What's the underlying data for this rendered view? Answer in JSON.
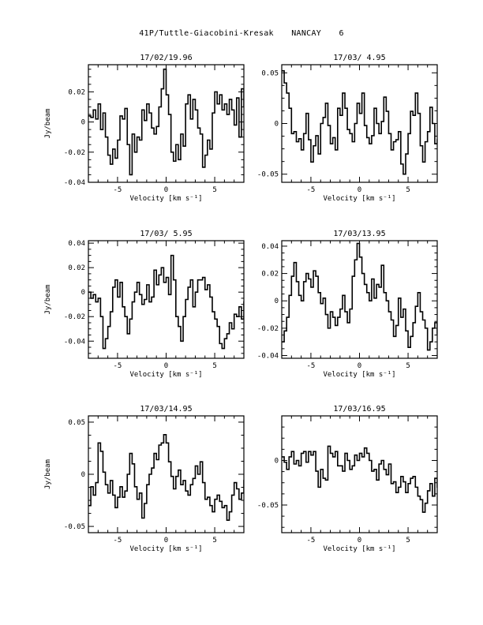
{
  "header": {
    "object": "41P/Tuttle-Giacobini-Kresak",
    "station": "NANCAY",
    "page_number": "6"
  },
  "chart_data": [
    {
      "type": "line",
      "title": "17/02/19.96",
      "xlabel": "Velocity [km s⁻¹]",
      "ylabel": "Jy/beam",
      "xlim": [
        -8,
        8
      ],
      "ylim": [
        -0.04,
        0.038
      ],
      "xticks": [
        -5,
        0,
        5
      ],
      "yticks": [
        -0.04,
        -0.02,
        0,
        0.02
      ],
      "ytick_labels": [
        "-0.04",
        "-0.02",
        "0",
        "0.02"
      ],
      "x_start": -8,
      "x_step": 0.25,
      "values": [
        0.004,
        0.003,
        0.008,
        0.002,
        0.012,
        -0.005,
        0.006,
        -0.01,
        -0.022,
        -0.028,
        -0.018,
        -0.024,
        -0.012,
        0.004,
        0.002,
        0.009,
        -0.015,
        -0.035,
        -0.008,
        -0.02,
        -0.01,
        -0.012,
        0.008,
        0.001,
        0.012,
        0.006,
        -0.004,
        -0.008,
        -0.003,
        0.01,
        0.022,
        0.035,
        0.018,
        0.005,
        -0.02,
        -0.026,
        -0.015,
        -0.025,
        -0.008,
        -0.016,
        0.012,
        0.018,
        0.002,
        0.015,
        0.008,
        -0.004,
        -0.008,
        -0.03,
        -0.022,
        -0.012,
        -0.018,
        0.006,
        0.02,
        0.012,
        0.018,
        0.008,
        0.012,
        0.005,
        0.015,
        0.008,
        -0.002,
        0.016,
        -0.01,
        0.022,
        0.01,
        -0.018,
        -0.012,
        -0.016,
        -0.024,
        -0.006,
        -0.012,
        0.006,
        0.018,
        0.012,
        0.025,
        0.01,
        -0.006,
        -0.01,
        -0.02,
        -0.014,
        -0.012,
        -0.02,
        -0.026,
        -0.012,
        -0.018,
        0.002,
        0.016,
        0.025,
        0.01,
        0.005,
        -0.002,
        -0.01,
        -0.014,
        -0.032,
        -0.038,
        -0.024,
        -0.026,
        -0.018,
        -0.006,
        -0.012,
        -0.02,
        -0.014,
        -0.018,
        -0.012,
        -0.008,
        -0.002,
        0.01,
        0.018,
        0.012,
        0.005,
        -0.006,
        0.002,
        0.012,
        0.02,
        0.008,
        0.003,
        0.012,
        0.006,
        0.01,
        0.016,
        -0.002,
        0.02,
        0.028,
        0.024,
        0.018,
        0.012,
        -0.006,
        -0.014,
        -0.008,
        -0.012,
        -0.018,
        0.006,
        0.002,
        -0.008,
        0.005,
        0.022,
        0.002,
        0.004,
        0.014,
        0.018,
        0.03,
        0.016,
        0.008,
        -0.006,
        -0.012,
        -0.01,
        -0.016,
        -0.004,
        0.016,
        0.006,
        0.01,
        0.002,
        0.008,
        0.014,
        0.012,
        -0.01,
        -0.018,
        -0.012,
        -0.008,
        -0.014
      ]
    },
    {
      "type": "line",
      "title": "17/03/ 4.95",
      "xlabel": "Velocity [km s⁻¹]",
      "ylabel": "",
      "xlim": [
        -8,
        8
      ],
      "ylim": [
        -0.058,
        0.058
      ],
      "xticks": [
        -5,
        0,
        5
      ],
      "yticks": [
        -0.05,
        0,
        0.05
      ],
      "ytick_labels": [
        "-0.05",
        "0",
        "0.05"
      ],
      "x_start": -8,
      "x_step": 0.25,
      "values": [
        0.052,
        0.04,
        0.03,
        0.015,
        -0.01,
        -0.008,
        -0.018,
        -0.015,
        -0.026,
        -0.01,
        0.01,
        -0.016,
        -0.038,
        -0.022,
        -0.012,
        -0.03,
        0.0,
        0.006,
        0.02,
        -0.002,
        -0.02,
        -0.014,
        -0.026,
        0.015,
        0.008,
        0.03,
        0.015,
        -0.006,
        -0.01,
        -0.018,
        0.0,
        0.02,
        0.01,
        0.03,
        -0.002,
        -0.014,
        -0.02,
        -0.012,
        0.015,
        0.0,
        -0.01,
        0.002,
        0.026,
        0.012,
        -0.01,
        -0.026,
        -0.018,
        -0.016,
        -0.008,
        -0.04,
        -0.05,
        -0.03,
        -0.01,
        0.012,
        0.008,
        0.03,
        0.01,
        -0.022,
        -0.038,
        -0.018,
        -0.008,
        0.016,
        0.0,
        -0.02,
        -0.016,
        -0.002,
        0.02,
        0.01,
        0.012,
        0.024,
        0.016,
        0.006,
        -0.01,
        -0.02,
        -0.012,
        -0.002,
        0.012,
        0.03,
        0.015,
        -0.006,
        -0.02,
        -0.014,
        -0.008,
        -0.03,
        -0.012,
        0.005,
        0.02,
        0.02,
        0.01,
        -0.018,
        -0.01,
        0.005,
        0.008,
        -0.008,
        -0.03,
        -0.01,
        -0.004,
        -0.022,
        -0.005,
        0.012,
        0.025,
        -0.01,
        -0.02,
        -0.006,
        0.018,
        0.01,
        -0.015,
        -0.02,
        0.01,
        -0.012,
        -0.005,
        0.02,
        0.015,
        0.012,
        0.0,
        0.016,
        0.005,
        -0.004,
        -0.016,
        -0.024,
        0.0,
        0.024,
        0.01,
        0.005,
        -0.002,
        -0.024,
        0.01,
        0.0,
        -0.01,
        0.012,
        -0.004,
        0.015,
        0.01,
        -0.02,
        0.0,
        0.012,
        0.028,
        0.01,
        0.02,
        0.012,
        -0.01,
        0.0,
        0.018,
        0.012,
        -0.008,
        -0.018,
        -0.01,
        -0.004,
        -0.012,
        -0.02,
        -0.026,
        -0.038,
        -0.01,
        0.028,
        0.06,
        0.025,
        0.03,
        0.008,
        -0.012,
        -0.004
      ]
    },
    {
      "type": "line",
      "title": "17/03/ 5.95",
      "xlabel": "Velocity [km s⁻¹]",
      "ylabel": "Jy/beam",
      "xlim": [
        -8,
        8
      ],
      "ylim": [
        -0.054,
        0.042
      ],
      "xticks": [
        -5,
        0,
        5
      ],
      "yticks": [
        -0.04,
        -0.02,
        0,
        0.02,
        0.04
      ],
      "ytick_labels": [
        "-0.04",
        "-0.02",
        "0",
        "0.02",
        "0.04"
      ],
      "x_start": -8,
      "x_step": 0.25,
      "values": [
        0.0,
        -0.005,
        -0.002,
        -0.008,
        -0.005,
        -0.02,
        -0.046,
        -0.038,
        -0.028,
        -0.016,
        0.004,
        0.01,
        -0.004,
        0.008,
        -0.012,
        -0.02,
        -0.034,
        -0.022,
        -0.008,
        0.0,
        0.008,
        -0.002,
        -0.01,
        -0.006,
        0.006,
        -0.008,
        -0.004,
        0.018,
        0.006,
        0.014,
        0.02,
        0.008,
        0.012,
        -0.002,
        0.03,
        0.01,
        -0.02,
        -0.028,
        -0.04,
        -0.02,
        -0.006,
        0.004,
        0.01,
        -0.012,
        0.0,
        0.01,
        0.01,
        0.012,
        0.002,
        0.006,
        -0.004,
        -0.016,
        -0.022,
        -0.028,
        -0.042,
        -0.046,
        -0.038,
        -0.034,
        -0.025,
        -0.03,
        -0.018,
        -0.02,
        -0.012,
        -0.022,
        -0.008,
        -0.002,
        -0.022,
        -0.018,
        -0.012,
        -0.02,
        -0.014,
        -0.01,
        -0.018,
        -0.006,
        -0.012,
        0.002,
        -0.012,
        -0.008,
        -0.006,
        -0.016,
        -0.02,
        -0.008,
        -0.014,
        -0.018,
        -0.024,
        -0.012,
        -0.008,
        -0.018,
        -0.02,
        -0.026,
        -0.012,
        -0.004,
        0.012,
        0.0,
        -0.006,
        -0.016,
        -0.002,
        0.01,
        0.002,
        -0.004,
        -0.012,
        -0.02,
        -0.014,
        0.006,
        0.02,
        0.034,
        0.034,
        0.022,
        0.008,
        -0.004,
        -0.02,
        -0.034,
        -0.048,
        -0.032,
        -0.01,
        0.004,
        -0.008,
        -0.018,
        -0.01,
        -0.002,
        -0.02,
        -0.008,
        0.006,
        0.02,
        0.002,
        0.01,
        0.008,
        -0.002,
        0.008,
        -0.012,
        -0.004,
        -0.018,
        -0.014,
        -0.004,
        0.016,
        0.01,
        0.006,
        -0.004,
        -0.008,
        -0.014,
        0.002,
        0.012,
        0.03,
        0.034,
        0.02,
        0.01,
        0.016,
        0.006,
        0.0,
        -0.02,
        -0.012,
        0.004,
        -0.006,
        0.014,
        0.02,
        -0.002,
        0.018,
        0.008,
        -0.004,
        -0.006,
        0.004
      ]
    },
    {
      "type": "line",
      "title": "17/03/13.95",
      "xlabel": "Velocity [km s⁻¹]",
      "ylabel": "",
      "xlim": [
        -8,
        8
      ],
      "ylim": [
        -0.042,
        0.044
      ],
      "xticks": [
        -5,
        0,
        5
      ],
      "yticks": [
        -0.04,
        -0.02,
        0,
        0.02,
        0.04
      ],
      "ytick_labels": [
        "-0.04",
        "-0.02",
        "0",
        "0.02",
        "0.04"
      ],
      "x_start": -8,
      "x_step": 0.25,
      "values": [
        -0.03,
        -0.022,
        -0.012,
        0.004,
        0.018,
        0.028,
        0.014,
        0.004,
        0.0,
        0.014,
        0.02,
        0.016,
        0.01,
        0.022,
        0.018,
        0.006,
        -0.002,
        0.002,
        -0.01,
        -0.02,
        -0.008,
        -0.012,
        -0.018,
        -0.012,
        -0.006,
        0.004,
        -0.008,
        -0.016,
        -0.006,
        0.018,
        0.03,
        0.042,
        0.032,
        0.02,
        0.012,
        0.006,
        0.0,
        0.016,
        0.002,
        0.012,
        0.01,
        0.026,
        0.006,
        0.0,
        -0.008,
        -0.014,
        -0.026,
        -0.018,
        0.002,
        -0.012,
        -0.006,
        -0.022,
        -0.034,
        -0.026,
        -0.016,
        -0.004,
        0.006,
        -0.008,
        -0.014,
        -0.02,
        -0.036,
        -0.03,
        -0.02,
        -0.016,
        -0.024,
        -0.038,
        -0.03,
        -0.026,
        -0.014,
        -0.004,
        0.014,
        0.004,
        -0.006,
        -0.02,
        -0.016,
        -0.01,
        -0.02,
        -0.032,
        -0.038,
        -0.026,
        -0.016,
        -0.02,
        0.0,
        0.004,
        0.018,
        0.01,
        -0.008,
        -0.014,
        -0.024,
        -0.032,
        -0.038,
        -0.018,
        -0.026,
        -0.012,
        -0.02,
        0.002,
        0.014,
        0.0,
        -0.004,
        -0.014,
        -0.016,
        -0.008,
        0.002,
        0.014,
        0.02,
        0.006,
        -0.006,
        -0.02,
        -0.01,
        0.008,
        0.028,
        0.004,
        -0.012,
        0.018,
        0.008,
        0.0,
        -0.012,
        0.012,
        0.006,
        -0.002,
        0.008,
        0.006,
        -0.018,
        -0.004,
        0.016,
        0.014,
        0.02,
        0.01,
        0.012,
        0.026,
        0.014,
        0.02,
        0.02,
        0.012,
        -0.002,
        -0.006,
        -0.002,
        0.016,
        0.004,
        0.012,
        0.02,
        0.012,
        0.006,
        -0.004,
        -0.012,
        0.006,
        0.016,
        0.006,
        -0.008,
        0.0,
        -0.01,
        0.004,
        0.018,
        0.01,
        0.006,
        0.0,
        -0.008,
        -0.014,
        -0.008,
        0.004,
        0.0,
        0.01
      ]
    },
    {
      "type": "line",
      "title": "17/03/14.95",
      "xlabel": "Velocity [km s⁻¹]",
      "ylabel": "Jy/beam",
      "xlim": [
        -8,
        8
      ],
      "ylim": [
        -0.056,
        0.056
      ],
      "xticks": [
        -5,
        0,
        5
      ],
      "yticks": [
        -0.05,
        0,
        0.05
      ],
      "ytick_labels": [
        "-0.05",
        "0",
        "0.05"
      ],
      "x_start": -8,
      "x_step": 0.25,
      "values": [
        -0.03,
        -0.012,
        -0.02,
        -0.008,
        0.03,
        0.022,
        0.002,
        -0.01,
        -0.018,
        -0.006,
        -0.02,
        -0.032,
        -0.022,
        -0.012,
        -0.022,
        -0.016,
        0.0,
        0.02,
        0.01,
        -0.012,
        -0.024,
        -0.018,
        -0.042,
        -0.028,
        -0.01,
        0.0,
        0.006,
        0.02,
        0.014,
        0.028,
        0.03,
        0.038,
        0.03,
        0.012,
        -0.002,
        -0.014,
        -0.002,
        0.004,
        -0.01,
        -0.006,
        -0.016,
        -0.02,
        -0.01,
        -0.004,
        0.008,
        0.0,
        0.012,
        -0.008,
        -0.024,
        -0.022,
        -0.03,
        -0.036,
        -0.024,
        -0.02,
        -0.026,
        -0.032,
        -0.03,
        -0.044,
        -0.036,
        -0.02,
        -0.008,
        -0.014,
        -0.024,
        -0.018,
        -0.006,
        0.006,
        0.002,
        -0.022,
        -0.032,
        -0.04,
        -0.048,
        -0.054,
        -0.042,
        -0.026,
        -0.016,
        -0.03,
        -0.012,
        -0.006,
        -0.022,
        -0.03,
        -0.046,
        -0.034,
        -0.012,
        -0.026,
        -0.02,
        -0.038,
        -0.044,
        -0.03,
        -0.02,
        -0.026,
        -0.036,
        -0.028,
        -0.016,
        -0.022,
        -0.032,
        -0.04,
        -0.024,
        -0.03,
        -0.012,
        -0.02,
        -0.028,
        -0.018,
        -0.022,
        -0.034,
        -0.042,
        -0.028,
        -0.038,
        -0.024,
        -0.016,
        -0.026,
        -0.014,
        -0.02,
        -0.032,
        -0.02,
        -0.008,
        -0.018,
        -0.002,
        -0.012,
        -0.006,
        0.002,
        -0.012,
        -0.022,
        -0.014,
        -0.004,
        0.004,
        -0.002,
        -0.012,
        -0.022,
        -0.016,
        -0.006,
        -0.012,
        -0.02,
        -0.008,
        0.0,
        0.01,
        0.02,
        0.018,
        0.008,
        -0.004,
        0.01,
        0.022,
        0.026,
        0.028,
        0.018,
        0.02,
        0.034,
        0.038,
        0.03,
        0.014,
        0.002,
        -0.008,
        0.004,
        0.0,
        -0.006,
        -0.02,
        -0.012,
        -0.006,
        -0.01,
        -0.016,
        0.004,
        -0.014
      ]
    },
    {
      "type": "line",
      "title": "17/03/16.95",
      "xlabel": "Velocity [km s⁻¹]",
      "ylabel": "",
      "xlim": [
        -8,
        8
      ],
      "ylim": [
        -0.081,
        0.05
      ],
      "xticks": [
        -5,
        0,
        5
      ],
      "yticks": [
        -0.05,
        0
      ],
      "ytick_labels": [
        "-0.05",
        "0"
      ],
      "x_start": -8,
      "x_step": 0.25,
      "values": [
        0.004,
        -0.002,
        -0.01,
        0.004,
        0.01,
        -0.004,
        0.0,
        -0.006,
        0.008,
        0.01,
        -0.002,
        0.01,
        0.006,
        0.01,
        -0.012,
        -0.03,
        -0.01,
        -0.02,
        -0.022,
        0.016,
        0.008,
        0.004,
        0.01,
        -0.006,
        -0.006,
        -0.012,
        0.008,
        0.0,
        -0.01,
        -0.006,
        0.006,
        0.0,
        0.008,
        0.004,
        0.014,
        0.008,
        0.0,
        -0.012,
        -0.01,
        -0.022,
        -0.004,
        0.0,
        -0.01,
        -0.016,
        -0.004,
        -0.026,
        -0.024,
        -0.036,
        -0.03,
        -0.018,
        -0.024,
        -0.036,
        -0.026,
        -0.02,
        -0.018,
        -0.03,
        -0.04,
        -0.044,
        -0.058,
        -0.048,
        -0.034,
        -0.026,
        -0.04,
        -0.02,
        -0.03,
        -0.052,
        -0.038,
        -0.044,
        -0.058,
        -0.04,
        -0.05,
        -0.062,
        -0.058,
        -0.044,
        -0.03,
        -0.048,
        -0.034,
        -0.046,
        -0.056,
        -0.05,
        -0.036,
        -0.03,
        -0.044,
        -0.036,
        -0.05,
        -0.038,
        -0.042,
        -0.048,
        -0.03,
        -0.022,
        -0.036,
        -0.044,
        -0.03,
        -0.016,
        -0.022,
        -0.026,
        -0.018,
        -0.03,
        -0.038,
        -0.024,
        -0.012,
        -0.02,
        -0.01,
        0.0,
        -0.01,
        0.006,
        0.0,
        -0.014,
        -0.02,
        -0.008,
        0.004,
        -0.004,
        0.01,
        0.016,
        0.012,
        0.004,
        0.01,
        0.02,
        0.028,
        0.024,
        0.012,
        0.002,
        -0.006,
        -0.002,
        -0.012,
        -0.006,
        -0.018,
        -0.024,
        -0.014,
        -0.004,
        -0.008,
        0.006,
        0.012,
        0.002,
        0.008,
        0.0,
        -0.004,
        -0.012,
        -0.002,
        0.008,
        0.02,
        0.028,
        0.02,
        0.01,
        0.004,
        0.012,
        0.02,
        0.014,
        0.002,
        -0.006,
        0.008,
        0.02,
        0.026,
        0.016,
        0.008,
        0.018,
        0.006,
        0.014,
        0.02,
        0.01
      ]
    }
  ]
}
